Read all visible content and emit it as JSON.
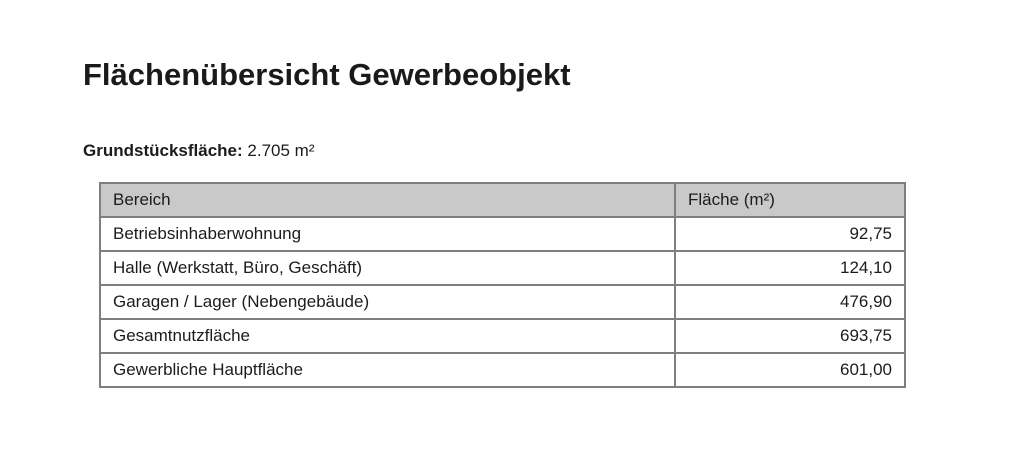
{
  "page": {
    "title": "Flächenübersicht Gewerbeobjekt",
    "subtitle": {
      "label": "Grundstücksfläche:",
      "value": "2.705 m²"
    }
  },
  "table": {
    "headers": [
      "Bereich",
      "Fläche (m²)"
    ],
    "rows": [
      {
        "bereich": "Betriebsinhaberwohnung",
        "flaeche": "92,75"
      },
      {
        "bereich": "Halle (Werkstatt, Büro, Geschäft)",
        "flaeche": "124,10"
      },
      {
        "bereich": "Garagen / Lager (Nebengebäude)",
        "flaeche": "476,90"
      },
      {
        "bereich": "Gesamtnutzfläche",
        "flaeche": "693,75"
      },
      {
        "bereich": "Gewerbliche Hauptfläche",
        "flaeche": "601,00"
      }
    ]
  },
  "colors": {
    "header_bg": "#c9c9c9",
    "border": "#7f7f7f",
    "text": "#1c1c1c"
  }
}
